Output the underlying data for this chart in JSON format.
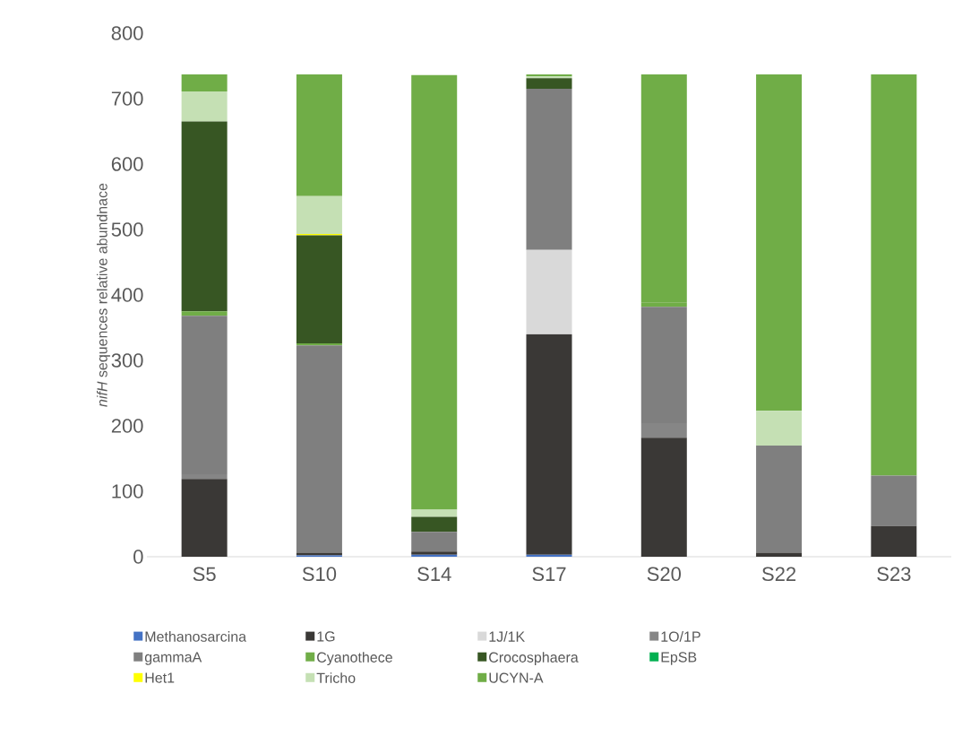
{
  "chart_data": {
    "type": "bar",
    "stacked": true,
    "ylabel": "*nifH* sequences relative abundnace",
    "categories": [
      "S5",
      "S10",
      "S14",
      "S17",
      "S20",
      "S22",
      "S23"
    ],
    "series": [
      {
        "name": "Methanosarcina",
        "color": "#4472c4",
        "values": [
          0,
          2,
          3,
          3,
          0,
          0,
          0
        ]
      },
      {
        "name": "1G",
        "color": "#3a3836",
        "values": [
          119,
          4,
          5,
          337,
          182,
          6,
          47
        ]
      },
      {
        "name": "1J/1K",
        "color": "#d9d9d9",
        "values": [
          0,
          0,
          0,
          129,
          0,
          0,
          0
        ]
      },
      {
        "name": "1O/1P",
        "color": "#868686",
        "values": [
          7,
          0,
          0,
          0,
          22,
          0,
          0
        ]
      },
      {
        "name": "gammaA",
        "color": "#7f7f7f",
        "values": [
          242,
          317,
          30,
          246,
          178,
          164,
          77
        ]
      },
      {
        "name": "Cyanothece",
        "color": "#70ad47",
        "values": [
          7,
          3,
          null,
          0,
          6,
          0,
          0
        ]
      },
      {
        "name": "Crocosphaera",
        "color": "#375623",
        "values": [
          290,
          165,
          23,
          16,
          0,
          0,
          0
        ]
      },
      {
        "name": "EpSB",
        "color": "#00b050",
        "values": [
          0,
          0,
          0,
          0,
          0,
          0,
          0
        ]
      },
      {
        "name": "Het1",
        "color": "#ffff00",
        "values": [
          0,
          2,
          0,
          0,
          0,
          0,
          0
        ]
      },
      {
        "name": "Tricho",
        "color": "#c5e0b4",
        "values": [
          46,
          58,
          11,
          3,
          0,
          53,
          0
        ]
      },
      {
        "name": "UCYN-A",
        "color": "#70ad47",
        "values": [
          26,
          186,
          664,
          3,
          349,
          514,
          613
        ]
      }
    ],
    "ylim": [
      0,
      800
    ],
    "yticks": [
      0,
      100,
      200,
      300,
      400,
      500,
      600,
      700,
      800
    ],
    "grid": false,
    "legend": "bottom"
  }
}
